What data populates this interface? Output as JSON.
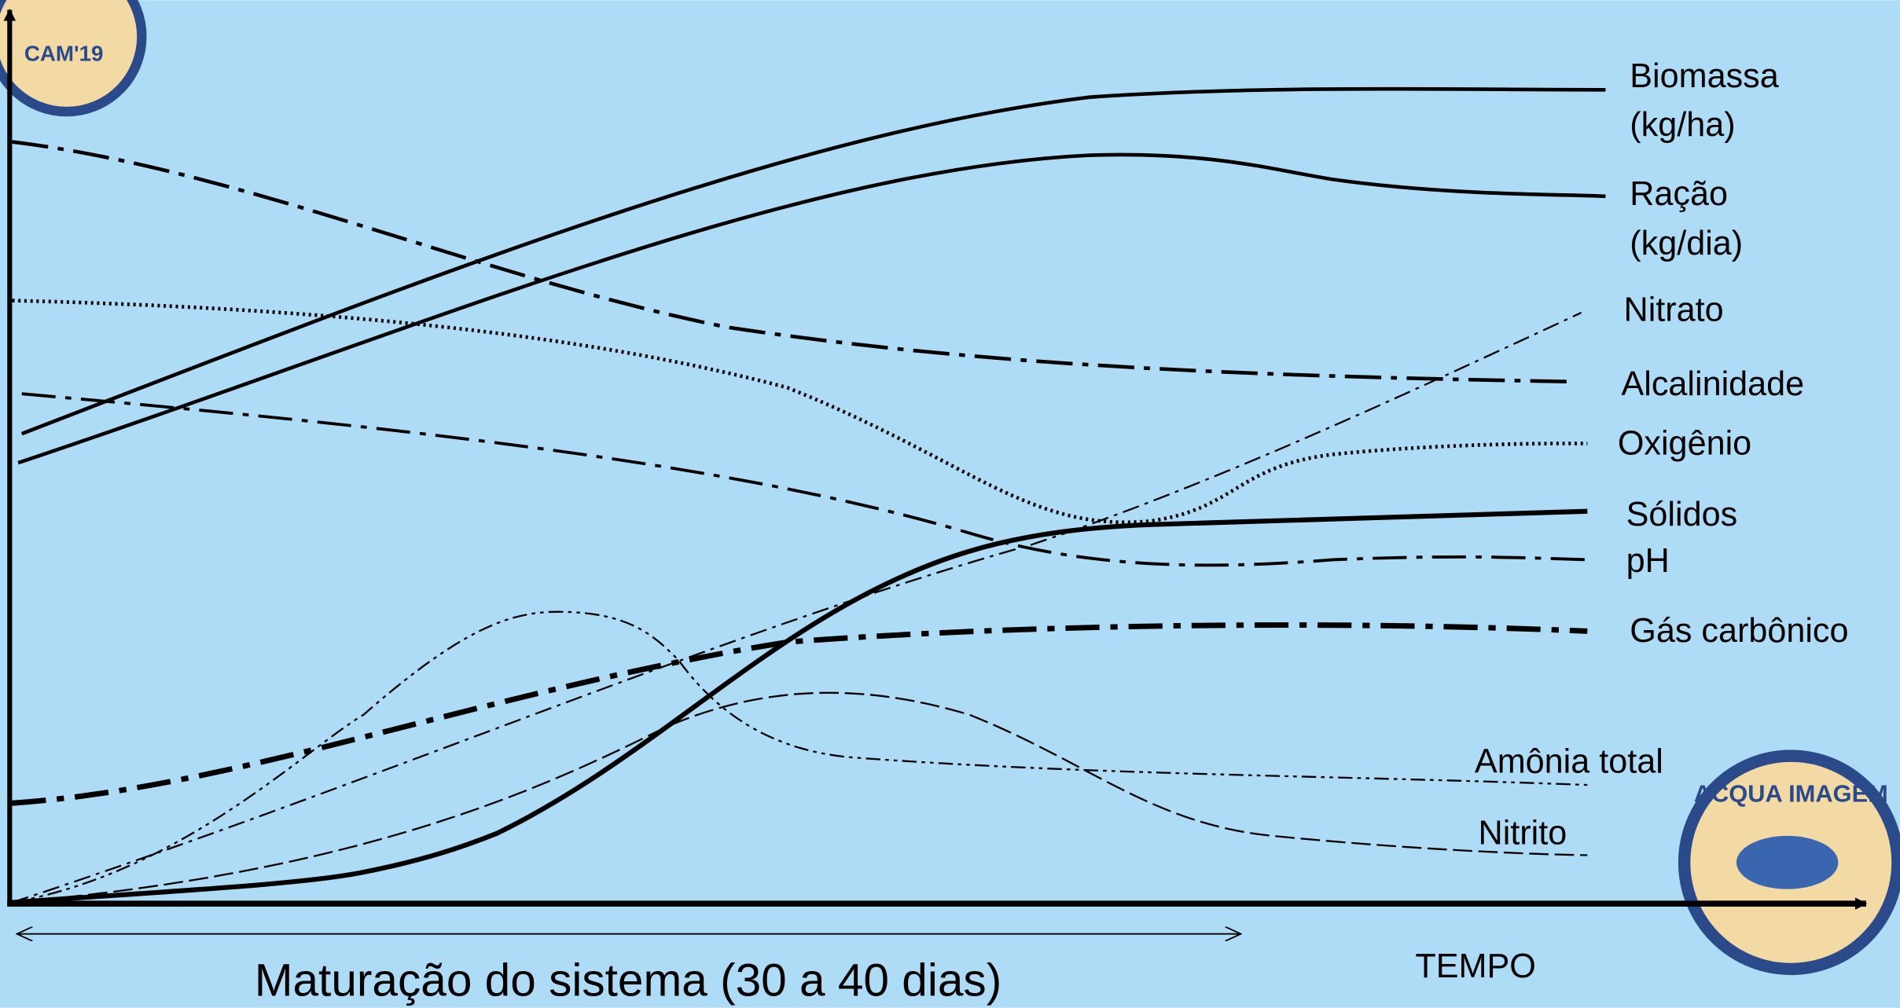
{
  "curves": [
    {
      "name": "Biomassa",
      "unit": "(kg/ha)"
    },
    {
      "name": "Ração",
      "unit": "(kg/dia)"
    },
    {
      "name": "Nitrato"
    },
    {
      "name": "Alcalinidade"
    },
    {
      "name": "Oxigênio"
    },
    {
      "name": "Sólidos"
    },
    {
      "name": "pH"
    },
    {
      "name": "Gás carbônico"
    },
    {
      "name": "Amônia total"
    },
    {
      "name": "Nitrito"
    }
  ],
  "x_axis_label": "TEMPO",
  "annotation": "Maturação do sistema (30 a 40 dias)",
  "logo_right": "ACQUA IMAGEM",
  "logo_left": "CAM'19"
}
